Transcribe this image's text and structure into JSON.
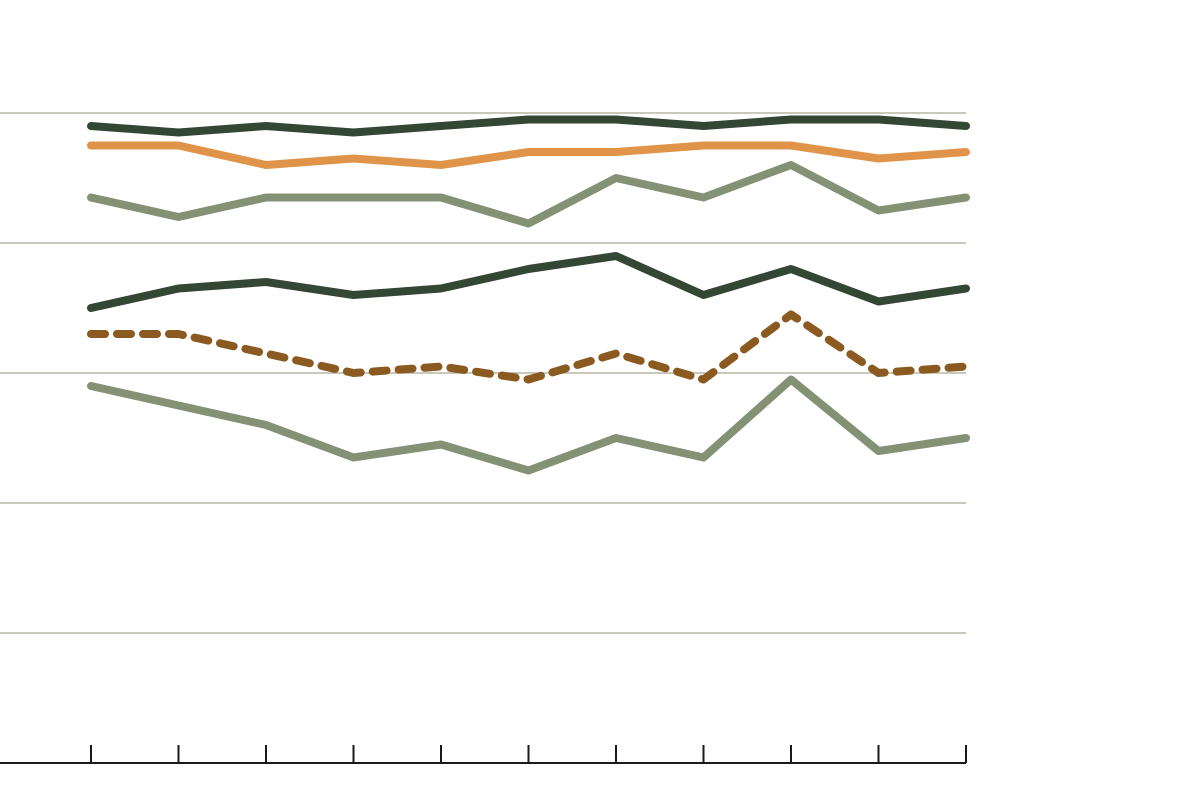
{
  "chart_data": {
    "type": "line",
    "title": "",
    "xlabel": "",
    "ylabel": "",
    "ylim": [
      0,
      100
    ],
    "x": [
      1,
      2,
      3,
      4,
      5,
      6,
      7,
      8,
      9,
      10,
      11
    ],
    "grid": true,
    "gridlines_y": [
      20,
      40,
      60,
      80
    ],
    "series": [
      {
        "values": [
          98,
          97,
          98,
          97,
          98,
          99,
          99,
          98,
          99,
          99,
          98
        ],
        "color": "#344634",
        "dashed": false
      },
      {
        "values": [
          95,
          95,
          92,
          93,
          92,
          94,
          94,
          95,
          95,
          93,
          94
        ],
        "color": "#df9449",
        "dashed": false
      },
      {
        "values": [
          87,
          84,
          87,
          87,
          87,
          83,
          90,
          87,
          92,
          85,
          87
        ],
        "color": "#849174",
        "dashed": false
      },
      {
        "values": [
          70,
          73,
          74,
          72,
          73,
          76,
          78,
          72,
          76,
          71,
          73
        ],
        "color": "#344634",
        "dashed": false
      },
      {
        "values": [
          66,
          66,
          63,
          60,
          61,
          59,
          63,
          59,
          69,
          60,
          61
        ],
        "color": "#8a5a21",
        "dashed": true
      },
      {
        "values": [
          58,
          55,
          52,
          47,
          49,
          45,
          50,
          47,
          59,
          48,
          50
        ],
        "color": "#849174",
        "dashed": false
      }
    ]
  }
}
